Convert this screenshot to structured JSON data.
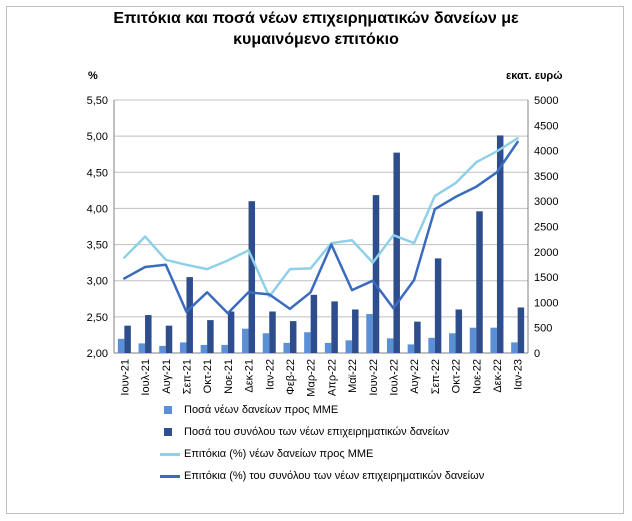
{
  "chart_data": {
    "type": "bar",
    "title_line1": "Επιτόκια και ποσά νέων επιχειρηματικών δανείων με",
    "title_line2": "κυμαινόμενο επιτόκιο",
    "ylabel_left": "%",
    "ylabel_right": "εκατ. ευρώ",
    "ylim_left": [
      2.0,
      5.5
    ],
    "ylim_right": [
      0,
      5000
    ],
    "yticks_left": [
      "2,00",
      "2,50",
      "3,00",
      "3,50",
      "4,00",
      "4,50",
      "5,00",
      "5,50"
    ],
    "yticks_right": [
      "0",
      "500",
      "1000",
      "1500",
      "2000",
      "2500",
      "3000",
      "3500",
      "4000",
      "4500",
      "5000"
    ],
    "categories": [
      "Ιουν-21",
      "Ιουλ-21",
      "Αυγ-21",
      "Σεπ-21",
      "Οκτ-21",
      "Νοε-21",
      "Δεκ-21",
      "Ιαν-22",
      "Φεβ-22",
      "Μαρ-22",
      "Απρ-22",
      "Μαϊ-22",
      "Ιουν-22",
      "Ιουλ-22",
      "Αυγ-22",
      "Σεπ-22",
      "Οκτ-22",
      "Νοε-22",
      "Δεκ-22",
      "Ιαν-23"
    ],
    "legend_placement": "bottom",
    "series": [
      {
        "name": "Ποσά νέων δανείων προς ΜΜΕ",
        "kind": "bar",
        "axis": "right",
        "color": "#5b8fd6",
        "values": [
          280,
          190,
          140,
          210,
          160,
          160,
          480,
          390,
          200,
          410,
          200,
          250,
          770,
          290,
          170,
          300,
          390,
          500,
          500,
          210
        ]
      },
      {
        "name": "Ποσά του συνόλου των νέων επιχειρηματικών δανείων",
        "kind": "bar",
        "axis": "right",
        "color": "#2e4d8c",
        "values": [
          540,
          750,
          540,
          1500,
          650,
          820,
          3000,
          820,
          630,
          1150,
          1020,
          860,
          3120,
          3960,
          620,
          1870,
          860,
          2800,
          4300,
          900
        ]
      },
      {
        "name": "Επιτόκια (%) νέων δανείων προς ΜΜΕ",
        "kind": "line",
        "axis": "left",
        "color": "#8fd0e8",
        "values": [
          3.32,
          3.61,
          3.29,
          3.22,
          3.16,
          3.28,
          3.42,
          2.78,
          3.16,
          3.17,
          3.52,
          3.56,
          3.25,
          3.63,
          3.52,
          4.17,
          4.35,
          4.64,
          4.79,
          4.97
        ]
      },
      {
        "name": "Επιτόκια (%) του συνόλου των νέων επιχειρηματικών δανείων",
        "kind": "line",
        "axis": "left",
        "color": "#3a6bbf",
        "values": [
          3.03,
          3.19,
          3.22,
          2.57,
          2.84,
          2.55,
          2.84,
          2.81,
          2.61,
          2.84,
          3.5,
          2.87,
          3.0,
          2.62,
          3.01,
          3.99,
          4.16,
          4.3,
          4.5,
          4.92
        ]
      }
    ]
  }
}
